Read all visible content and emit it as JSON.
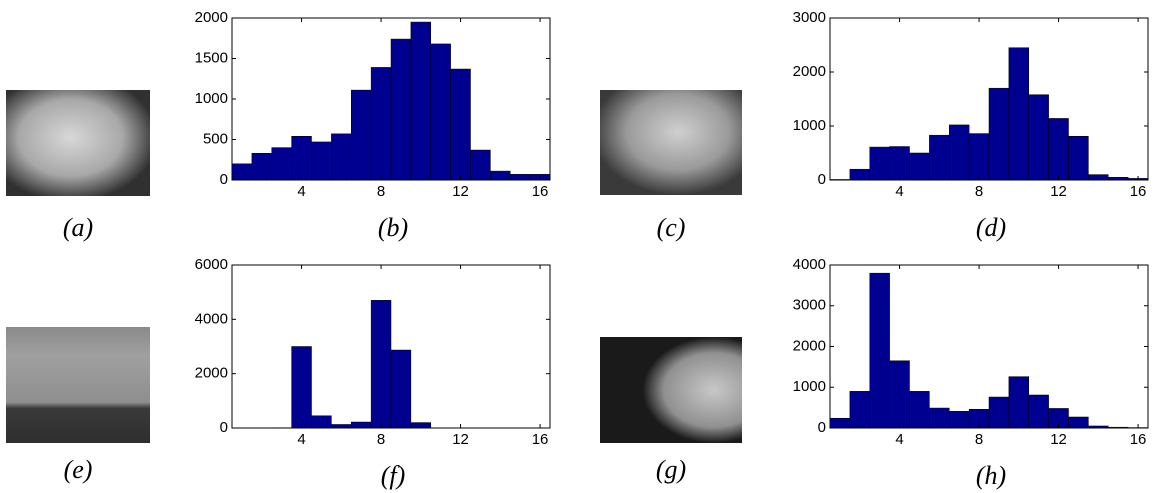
{
  "images": [
    {
      "caption": "(a)"
    },
    {
      "caption": "(c)"
    },
    {
      "caption": "(e)"
    },
    {
      "caption": "(g)"
    }
  ],
  "chart_data": [
    {
      "type": "histogram",
      "caption": "(b)",
      "color": "#000090",
      "bins": [
        0.5,
        1.5,
        2.5,
        3.5,
        4.5,
        5.5,
        6.5,
        7.5,
        8.5,
        9.5,
        10.5,
        11.5,
        12.5,
        13.5,
        14.5,
        15.5,
        16.5
      ],
      "values": [
        200,
        330,
        400,
        540,
        470,
        570,
        1110,
        1390,
        1740,
        1950,
        1680,
        1370,
        370,
        110,
        70,
        70
      ],
      "xlim": [
        0.5,
        16.5
      ],
      "xticks": [
        4,
        8,
        12,
        16
      ],
      "ylim": [
        0,
        2000
      ],
      "yticks": [
        0,
        500,
        1000,
        1500,
        2000
      ]
    },
    {
      "type": "histogram",
      "caption": "(d)",
      "color": "#000090",
      "bins": [
        0.5,
        1.5,
        2.5,
        3.5,
        4.5,
        5.5,
        6.5,
        7.5,
        8.5,
        9.5,
        10.5,
        11.5,
        12.5,
        13.5,
        14.5,
        15.5,
        16.5
      ],
      "values": [
        10,
        200,
        610,
        620,
        500,
        830,
        1020,
        860,
        1700,
        2450,
        1580,
        1140,
        810,
        100,
        50,
        30
      ],
      "xlim": [
        0.5,
        16.5
      ],
      "xticks": [
        4,
        8,
        12,
        16
      ],
      "ylim": [
        0,
        3000
      ],
      "yticks": [
        0,
        1000,
        2000,
        3000
      ]
    },
    {
      "type": "histogram",
      "caption": "(f)",
      "color": "#000090",
      "bins": [
        0.5,
        1.5,
        2.5,
        3.5,
        4.5,
        5.5,
        6.5,
        7.5,
        8.5,
        9.5,
        10.5,
        11.5,
        12.5,
        13.5,
        14.5,
        15.5,
        16.5
      ],
      "values": [
        0,
        0,
        10,
        3000,
        450,
        130,
        220,
        4700,
        2870,
        200,
        0,
        0,
        0,
        0,
        0,
        0
      ],
      "xlim": [
        0.5,
        16.5
      ],
      "xticks": [
        4,
        8,
        12,
        16
      ],
      "ylim": [
        0,
        6000
      ],
      "yticks": [
        0,
        2000,
        4000,
        6000
      ]
    },
    {
      "type": "histogram",
      "caption": "(h)",
      "color": "#000090",
      "bins": [
        0.5,
        1.5,
        2.5,
        3.5,
        4.5,
        5.5,
        6.5,
        7.5,
        8.5,
        9.5,
        10.5,
        11.5,
        12.5,
        13.5,
        14.5,
        15.5,
        16.5
      ],
      "values": [
        240,
        900,
        3800,
        1650,
        900,
        490,
        410,
        460,
        760,
        1260,
        810,
        480,
        270,
        50,
        20,
        10
      ],
      "xlim": [
        0.5,
        16.5
      ],
      "xticks": [
        4,
        8,
        12,
        16
      ],
      "ylim": [
        0,
        4000
      ],
      "yticks": [
        0,
        1000,
        2000,
        3000,
        4000
      ]
    }
  ]
}
